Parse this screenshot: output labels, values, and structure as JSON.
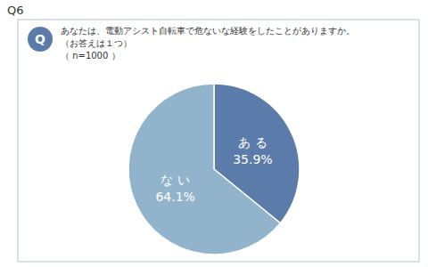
{
  "chart_data": {
    "type": "pie",
    "title": "Q6",
    "annotations": [
      "Q",
      "あなたは、電動アシスト自転車で危ないな経験をしたことがありますか。",
      "（お答えは１つ）",
      "（ n=1000 ）"
    ],
    "categories": [
      "あ る",
      "な い"
    ],
    "values": [
      35.9,
      64.1
    ],
    "value_labels": [
      "35.9%",
      "64.1%"
    ],
    "colors": [
      "#5b7baa",
      "#91b4cc"
    ],
    "data_labels": true
  }
}
